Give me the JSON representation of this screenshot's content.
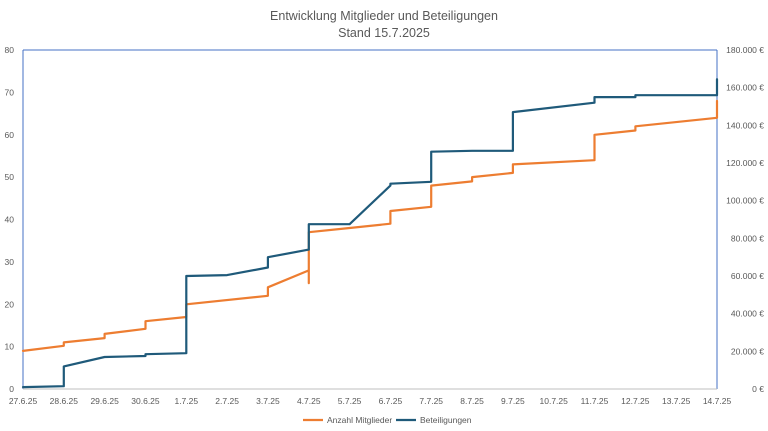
{
  "chart_data": {
    "type": "line",
    "title": "Entwicklung Mitglieder und Beteiligungen",
    "subtitle": "Stand 15.7.2025",
    "x_tick_labels": [
      "27.6.25",
      "28.6.25",
      "29.6.25",
      "30.6.25",
      "1.7.25",
      "2.7.25",
      "3.7.25",
      "4.7.25",
      "5.7.25",
      "6.7.25",
      "7.7.25",
      "8.7.25",
      "9.7.25",
      "10.7.25",
      "11.7.25",
      "12.7.25",
      "13.7.25",
      "14.7.25"
    ],
    "y_left_ticks": [
      "0",
      "10",
      "20",
      "30",
      "40",
      "50",
      "60",
      "70",
      "80"
    ],
    "y_right_ticks": [
      "0 €",
      "20.000 €",
      "40.000 €",
      "60.000 €",
      "80.000 €",
      "100.000 €",
      "120.000 €",
      "140.000 €",
      "160.000 €",
      "180.000 €"
    ],
    "ylim_left": [
      0,
      80
    ],
    "ylim_right": [
      0,
      180000
    ],
    "grid": false,
    "legend_position": "bottom",
    "colors": {
      "members": "#ED7D31",
      "investments": "#1F5A7A",
      "axis": "#4472C4"
    },
    "series": [
      {
        "name": "Anzahl Mitglieder",
        "axis": "left",
        "points": [
          [
            0,
            9
          ],
          [
            1,
            10.2
          ],
          [
            1,
            11
          ],
          [
            2,
            12
          ],
          [
            2,
            13
          ],
          [
            3,
            14.2
          ],
          [
            3,
            16
          ],
          [
            4,
            17
          ],
          [
            4,
            20
          ],
          [
            6,
            22
          ],
          [
            6,
            24
          ],
          [
            7,
            28
          ],
          [
            7,
            25
          ],
          [
            7,
            32
          ],
          [
            7,
            37
          ],
          [
            8,
            38
          ],
          [
            9,
            39
          ],
          [
            9,
            42
          ],
          [
            10,
            43
          ],
          [
            10,
            48
          ],
          [
            11,
            49
          ],
          [
            11,
            50
          ],
          [
            12,
            51
          ],
          [
            12,
            53
          ],
          [
            14,
            54
          ],
          [
            14,
            60
          ],
          [
            15,
            61
          ],
          [
            15,
            62
          ],
          [
            17,
            64
          ],
          [
            17,
            68
          ]
        ]
      },
      {
        "name": "Beteiligungen",
        "axis": "right",
        "points": [
          [
            0,
            1000
          ],
          [
            1,
            1500
          ],
          [
            1,
            12000
          ],
          [
            2,
            17000
          ],
          [
            3,
            17500
          ],
          [
            3,
            18500
          ],
          [
            4,
            19000
          ],
          [
            4,
            60000
          ],
          [
            5,
            60500
          ],
          [
            6,
            64500
          ],
          [
            6,
            70000
          ],
          [
            7,
            74000
          ],
          [
            7,
            80000
          ],
          [
            7,
            87500
          ],
          [
            8,
            87500
          ],
          [
            9,
            108000
          ],
          [
            9,
            109000
          ],
          [
            10,
            110000
          ],
          [
            10,
            126000
          ],
          [
            11,
            126500
          ],
          [
            12,
            126500
          ],
          [
            12,
            147000
          ],
          [
            14,
            152000
          ],
          [
            14,
            155000
          ],
          [
            15,
            155000
          ],
          [
            15,
            156000
          ],
          [
            17,
            156000
          ],
          [
            17,
            164500
          ]
        ]
      }
    ]
  }
}
